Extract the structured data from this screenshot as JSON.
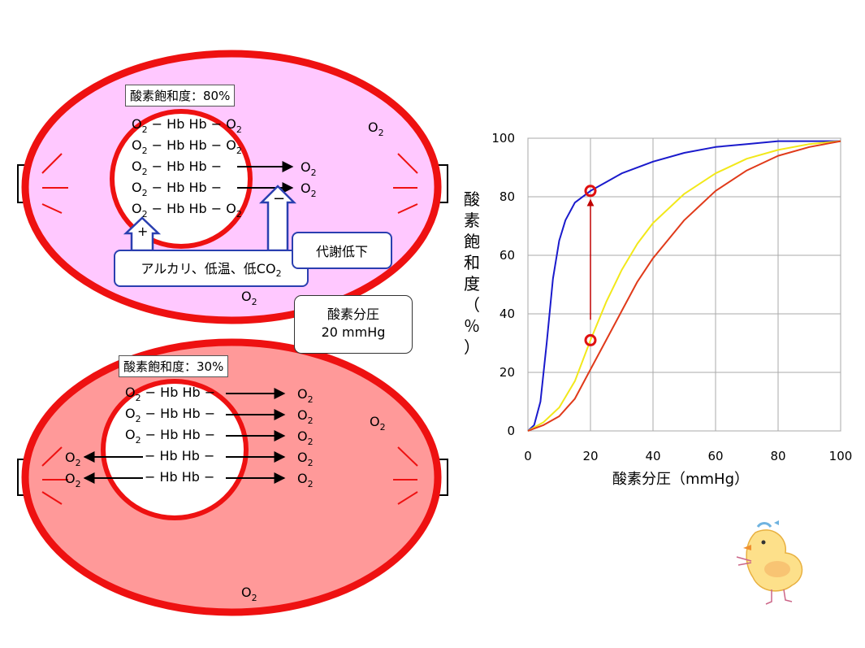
{
  "top_panel": {
    "saturation_label": "酸素飽和度：80%",
    "rows": [
      "O2 − Hb Hb − O2",
      "O2 − Hb Hb − O2",
      "O2 − Hb Hb −",
      "O2 − Hb Hb −",
      "O2 − Hb Hb − O2"
    ],
    "released": [
      "O2",
      "O2"
    ],
    "o2_outer": [
      "O2",
      "O2"
    ],
    "plus": "+",
    "minus": "−",
    "factor_box": "アルカリ、低温、低CO2",
    "metabolism_box": "代謝低下"
  },
  "pressure_box": {
    "line1": "酸素分圧",
    "line2": "20 mmHg"
  },
  "bottom_panel": {
    "saturation_label": "酸素飽和度：30%",
    "rows": [
      "O2 − Hb Hb −",
      "O2 − Hb Hb −",
      "O2 − Hb Hb −",
      "− Hb Hb −",
      "− Hb Hb −"
    ],
    "released": [
      "O2",
      "O2",
      "O2",
      "O2",
      "O2"
    ],
    "released_left": [
      "O2",
      "O2"
    ],
    "o2_outer": [
      "O2",
      "O2"
    ]
  },
  "chart_data": {
    "type": "line",
    "xlabel": "酸素分圧（mmHg）",
    "ylabel": "酸素飽和度（％）",
    "xlim": [
      0,
      100
    ],
    "ylim": [
      0,
      100
    ],
    "x_ticks": [
      "0",
      "20",
      "40",
      "60",
      "80",
      "100"
    ],
    "y_ticks": [
      "0",
      "20",
      "40",
      "60",
      "80",
      "100"
    ],
    "grid": true,
    "series": [
      {
        "color": "#1a1acc",
        "x": [
          0,
          2,
          4,
          6,
          8,
          10,
          12,
          15,
          20,
          25,
          30,
          40,
          50,
          60,
          70,
          80,
          90,
          100
        ],
        "y": [
          0,
          2,
          10,
          30,
          52,
          65,
          72,
          78,
          82,
          85,
          88,
          92,
          95,
          97,
          98,
          99,
          99,
          99
        ]
      },
      {
        "color": "#f2e81a",
        "x": [
          0,
          5,
          10,
          15,
          20,
          25,
          30,
          35,
          40,
          50,
          60,
          70,
          80,
          90,
          100
        ],
        "y": [
          0,
          3,
          8,
          17,
          31,
          44,
          55,
          64,
          71,
          81,
          88,
          93,
          96,
          98,
          99
        ]
      },
      {
        "color": "#e03a1a",
        "x": [
          0,
          5,
          10,
          15,
          20,
          25,
          30,
          35,
          40,
          50,
          60,
          70,
          80,
          90,
          100
        ],
        "y": [
          0,
          2,
          5,
          11,
          21,
          31,
          41,
          51,
          59,
          72,
          82,
          89,
          94,
          97,
          99
        ]
      }
    ],
    "markers": [
      {
        "x": 20,
        "y": 82
      },
      {
        "x": 20,
        "y": 31
      }
    ],
    "arrow": {
      "from": {
        "x": 20,
        "y": 38
      },
      "to": {
        "x": 20,
        "y": 79
      }
    }
  }
}
